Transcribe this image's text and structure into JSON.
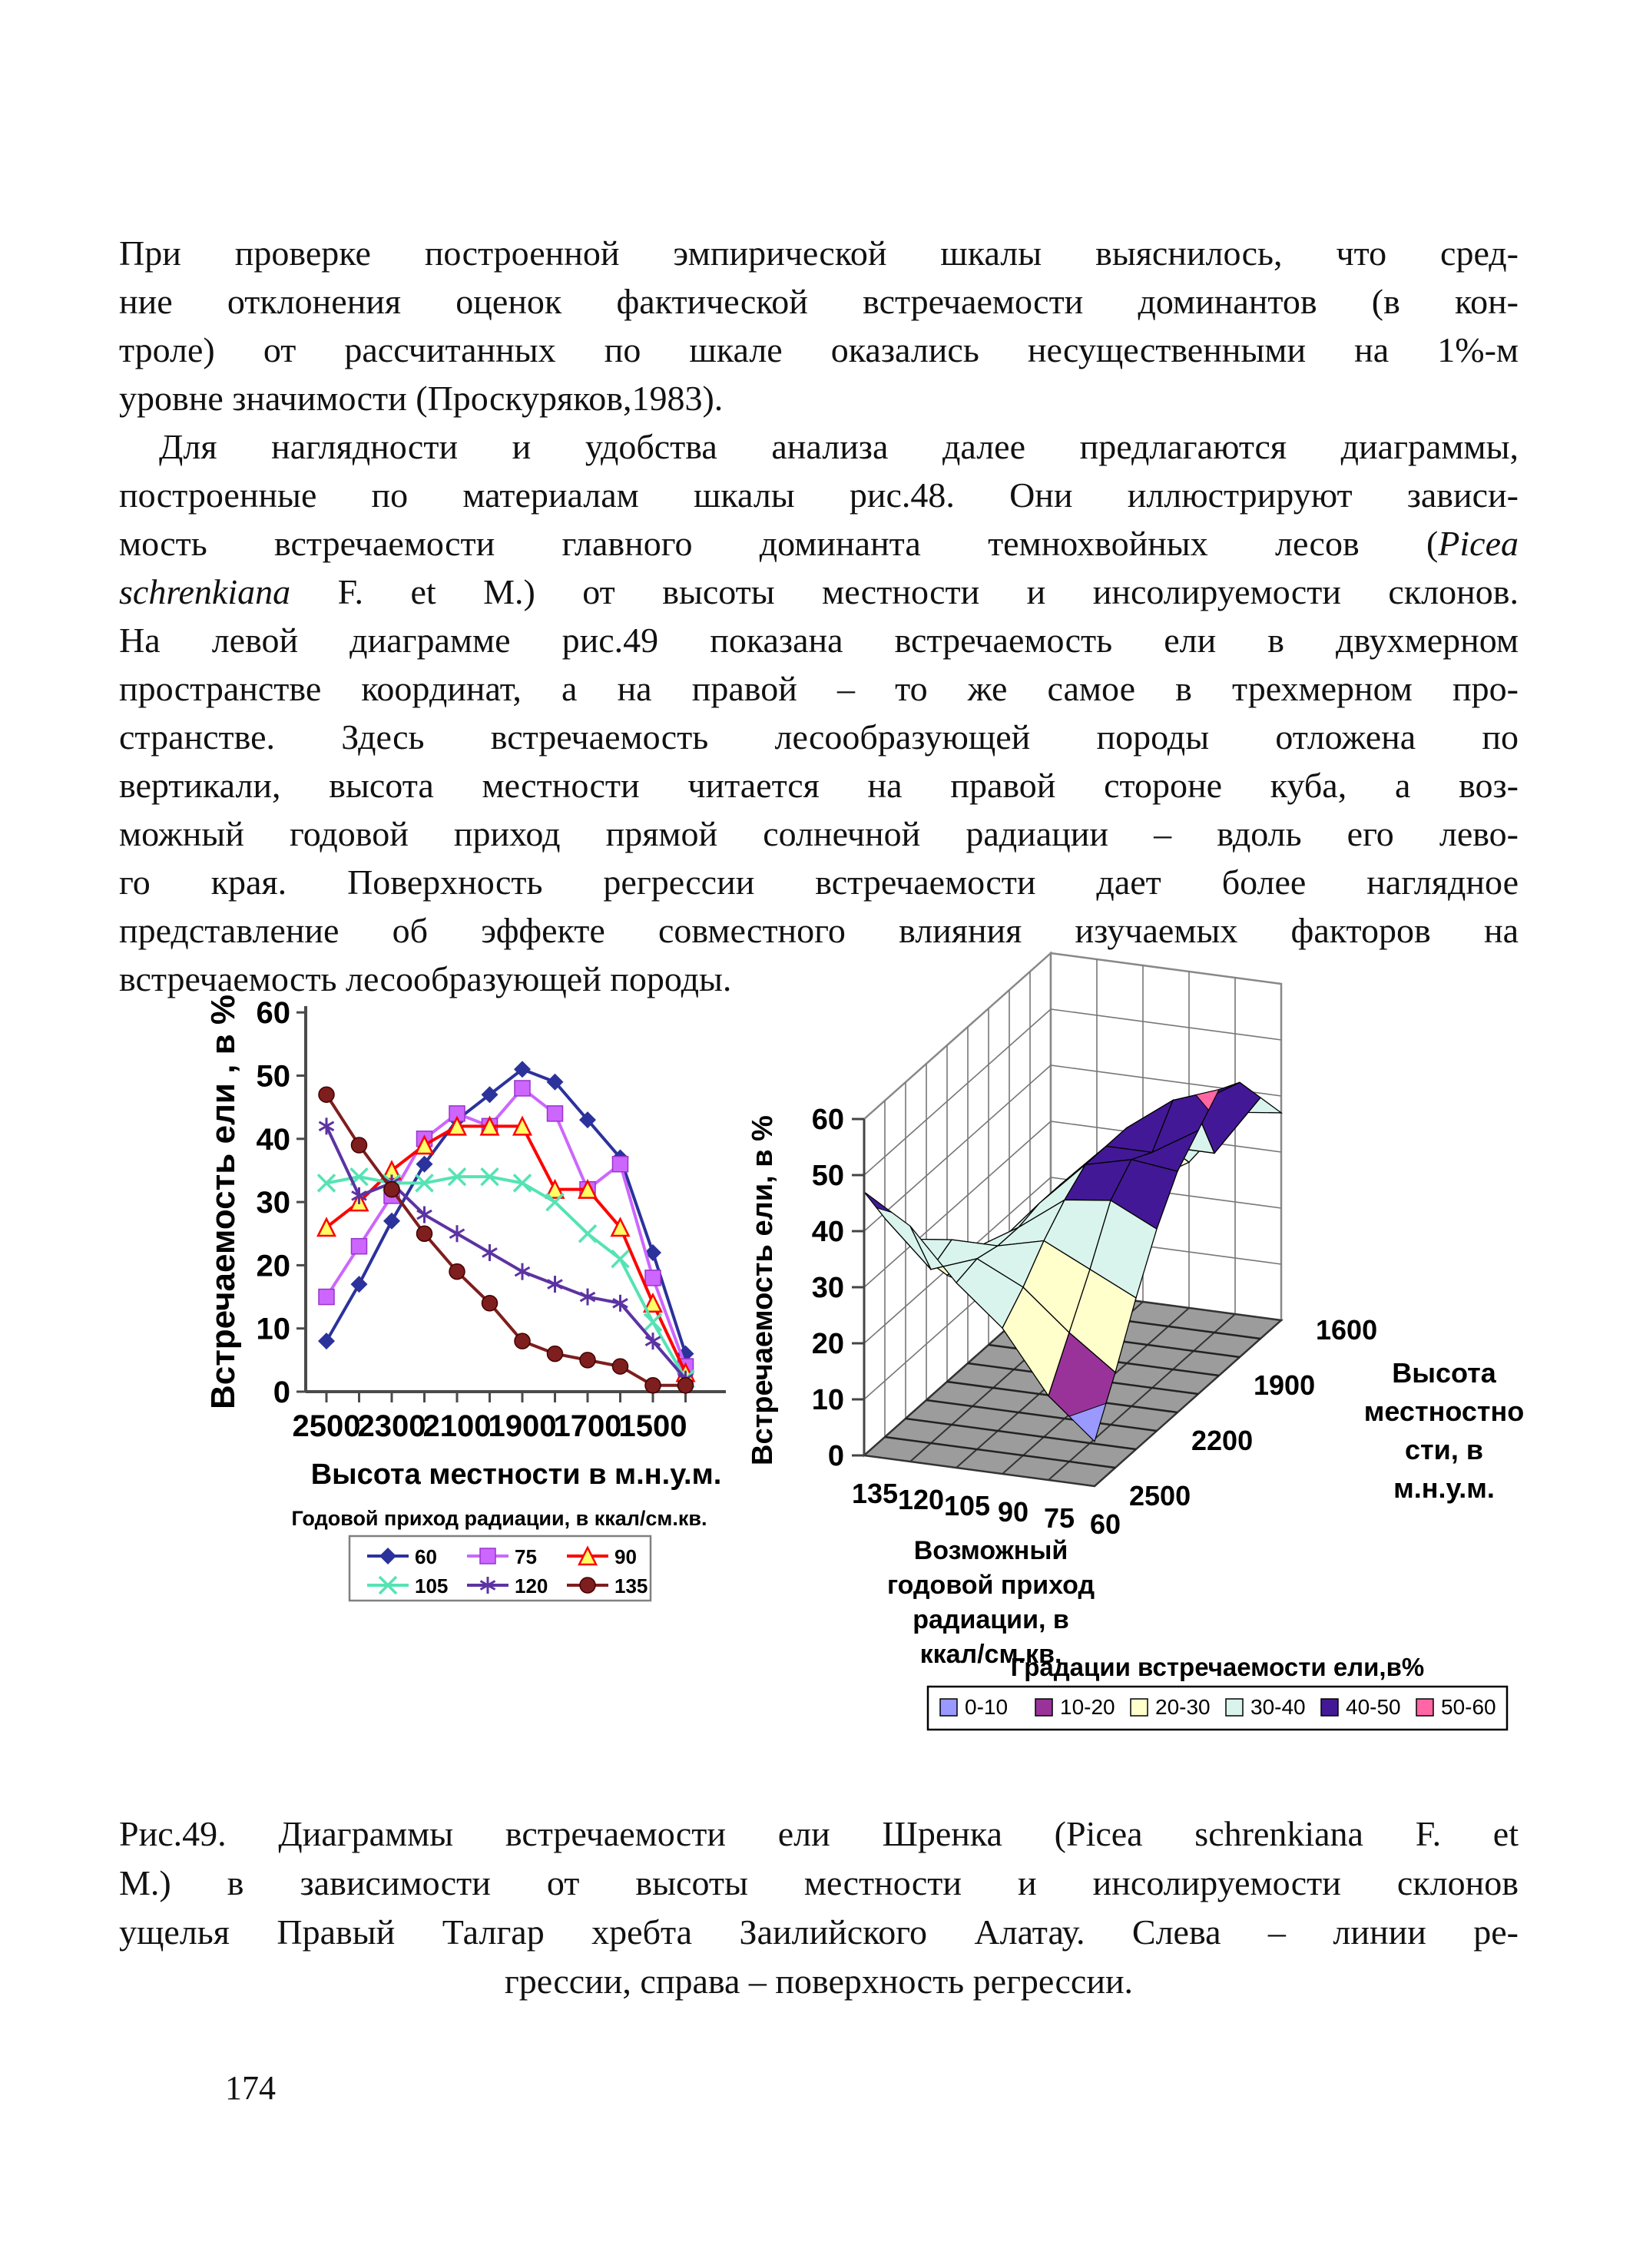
{
  "page": {
    "number": "174"
  },
  "body": {
    "paragraphs": [
      {
        "indent": false,
        "lines": [
          [
            {
              "t": "При проверке построенной эмпирической шкалы выяснилось, что сред-"
            }
          ],
          [
            {
              "t": "ние отклонения оценок фактической встречаемости доминантов (в кон-"
            }
          ],
          [
            {
              "t": "троле) от рассчитанных по шкале оказались несущественными на 1%-м"
            }
          ],
          [
            {
              "t": "уровне значимости (Проскуряков,1983).",
              "last": true
            }
          ]
        ]
      },
      {
        "indent": true,
        "lines": [
          [
            {
              "t": "Для наглядности и удобства анализа далее предлагаются диаграммы,"
            }
          ],
          [
            {
              "t": "построенные по материалам шкалы рис.48. Они иллюстрируют зависи-"
            }
          ],
          [
            {
              "t": "мость встречаемости главного доминанта темнохвойных лесов ("
            },
            {
              "t": "Picea",
              "i": true
            }
          ],
          [
            {
              "t": "schrenkiana",
              "i": true
            },
            {
              "t": " F. et М.) от высоты местности и инсолируемости склонов."
            }
          ],
          [
            {
              "t": "На левой диаграмме рис.49 показана встречаемость ели в двухмерном"
            }
          ],
          [
            {
              "t": "пространстве координат, а на правой – то же самое в трехмерном про-"
            }
          ],
          [
            {
              "t": "странстве. Здесь встречаемость лесообразующей породы отложена по"
            }
          ],
          [
            {
              "t": "вертикали, высота местности читается на правой стороне куба, а воз-"
            }
          ],
          [
            {
              "t": "можный годовой приход прямой солнечной радиации – вдоль его лево-"
            }
          ],
          [
            {
              "t": "го края. Поверхность регрессии встречаемости дает более наглядное"
            }
          ],
          [
            {
              "t": "представление об эффекте совместного влияния изучаемых факторов на"
            }
          ],
          [
            {
              "t": "встречаемость лесообразующей породы.",
              "last": true
            }
          ]
        ]
      }
    ]
  },
  "caption": {
    "lines": [
      "Рис.49. Диаграммы встречаемости ели Шренка (Picea schrenkiana F. et",
      "М.) в зависимости от высоты местности  и  инсолируемости  склонов",
      "ущелья Правый Талгар хребта Заилийского Алатау. Слева – линии ре-",
      "грессии, справа – поверхность регрессии."
    ]
  },
  "chart_data": [
    {
      "type": "line",
      "title": "",
      "xlabel": "Высота местности в м.н.у.м.",
      "ylabel": "Встречаемость ели , в %",
      "x": [
        2500,
        2400,
        2300,
        2200,
        2100,
        2000,
        1900,
        1800,
        1700,
        1600,
        1500,
        1400
      ],
      "x_tick_labels": [
        "2500",
        "2300",
        "2100",
        "1900",
        "1700",
        "1500"
      ],
      "ylim": [
        0,
        60
      ],
      "y_ticks": [
        0,
        10,
        20,
        30,
        40,
        50,
        60
      ],
      "grid": false,
      "legend_title": "Годовой приход радиации, в ккал/см.кв.",
      "legend_position": "bottom",
      "series": [
        {
          "name": "60",
          "color": "#2B329B",
          "marker": "diamond",
          "values": [
            8,
            17,
            27,
            36,
            43,
            47,
            51,
            49,
            43,
            37,
            22,
            6
          ]
        },
        {
          "name": "75",
          "color": "#CC66FF",
          "marker": "square",
          "values": [
            15,
            23,
            31,
            40,
            44,
            42,
            48,
            44,
            32,
            36,
            18,
            4
          ]
        },
        {
          "name": "90",
          "color": "#FF0000",
          "marker": "triangle",
          "values": [
            26,
            30,
            35,
            39,
            42,
            42,
            42,
            32,
            32,
            26,
            14,
            3
          ]
        },
        {
          "name": "105",
          "color": "#55E3B4",
          "marker": "x",
          "values": [
            33,
            34,
            33,
            33,
            34,
            34,
            33,
            30,
            25,
            21,
            11,
            2
          ]
        },
        {
          "name": "120",
          "color": "#5C33A2",
          "marker": "asterisk",
          "values": [
            42,
            31,
            33,
            28,
            25,
            22,
            19,
            17,
            15,
            14,
            8,
            2
          ]
        },
        {
          "name": "135",
          "color": "#7E1E1E",
          "marker": "circle",
          "values": [
            47,
            39,
            32,
            25,
            19,
            14,
            8,
            6,
            5,
            4,
            1,
            1
          ]
        }
      ]
    },
    {
      "type": "surface",
      "title": "",
      "zlabel": "Встречаемость ели, в %",
      "zlim": [
        0,
        60
      ],
      "z_ticks": [
        0,
        10,
        20,
        30,
        40,
        50,
        60
      ],
      "x_title_lines": [
        "Возможный",
        "годовой приход",
        "радиации, в",
        "ккал/см.кв."
      ],
      "x_tick_labels": [
        "135",
        "120",
        "105",
        "90",
        "75",
        "60"
      ],
      "radiation": [
        135,
        120,
        105,
        90,
        75,
        60
      ],
      "depth_title_lines": [
        "Высота",
        "местностно",
        "сти, в",
        "м.н.у.м."
      ],
      "depth_tick_labels": [
        "2500",
        "2200",
        "1900",
        "1600"
      ],
      "elevation": [
        2500,
        2400,
        2300,
        2200,
        2100,
        2000,
        1900,
        1800,
        1700,
        1600
      ],
      "values": [
        [
          47,
          39,
          32,
          25,
          19,
          14,
          8,
          6,
          5,
          4
        ],
        [
          42,
          31,
          33,
          28,
          25,
          22,
          19,
          17,
          15,
          14
        ],
        [
          33,
          34,
          33,
          33,
          34,
          34,
          33,
          30,
          25,
          21
        ],
        [
          26,
          30,
          35,
          39,
          42,
          42,
          42,
          32,
          32,
          26
        ],
        [
          15,
          23,
          31,
          40,
          44,
          42,
          48,
          44,
          32,
          36
        ],
        [
          8,
          17,
          27,
          36,
          43,
          47,
          51,
          49,
          43,
          37
        ]
      ],
      "legend_title": "Градации встречаемости ели,в%",
      "bands": [
        {
          "label": "0-10",
          "color": "#9999FF"
        },
        {
          "label": "10-20",
          "color": "#993399"
        },
        {
          "label": "20-30",
          "color": "#FFFFCC"
        },
        {
          "label": "30-40",
          "color": "#D9F4EC"
        },
        {
          "label": "40-50",
          "color": "#431896"
        },
        {
          "label": "50-60",
          "color": "#FF66A3"
        }
      ],
      "floor_color": "#9C9C9C"
    }
  ]
}
